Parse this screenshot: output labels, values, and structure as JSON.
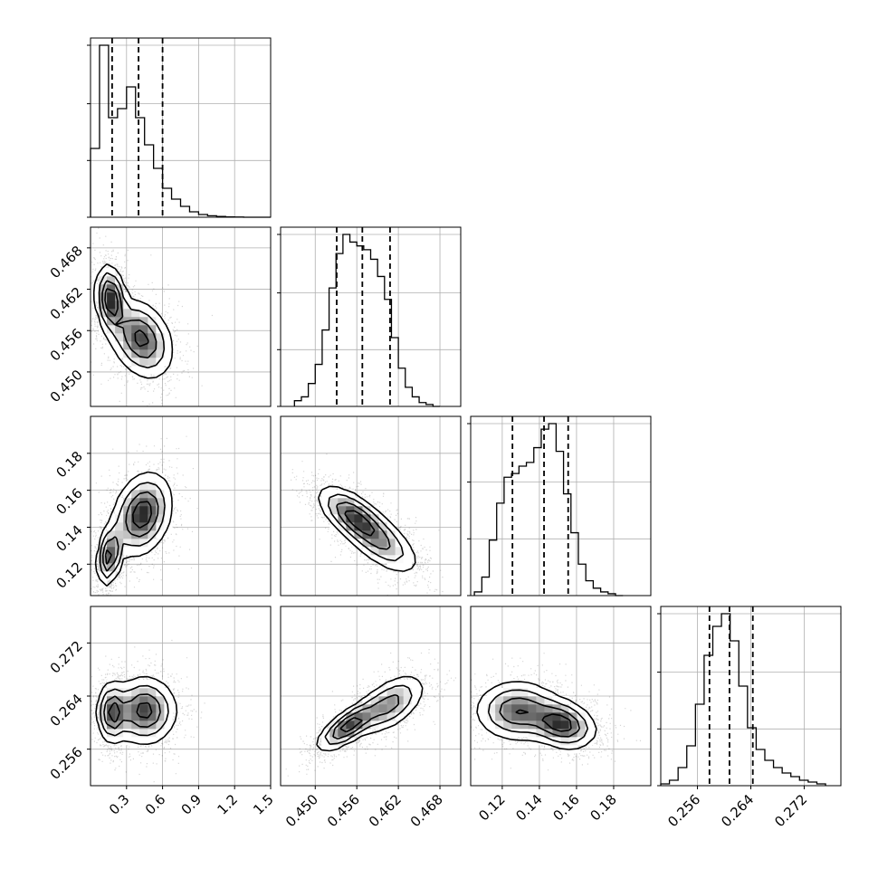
{
  "chart_data": {
    "type": "corner",
    "grid_lines": true,
    "parameters": [
      {
        "range": [
          0.0,
          1.5
        ],
        "ticks": [
          0.3,
          0.6,
          0.9,
          1.2,
          1.5
        ],
        "tick_labels": [
          "0.3",
          "0.6",
          "0.9",
          "1.2",
          "1.5"
        ],
        "quantiles": [
          0.18,
          0.4,
          0.6
        ],
        "hist": {
          "bin_edges": [
            0.0,
            0.075,
            0.15,
            0.225,
            0.3,
            0.375,
            0.45,
            0.525,
            0.6,
            0.675,
            0.75,
            0.825,
            0.9,
            0.975,
            1.05,
            1.125,
            1.2,
            1.275,
            1.35,
            1.425,
            1.5
          ],
          "counts": [
            0.38,
            0.95,
            0.55,
            0.6,
            0.72,
            0.55,
            0.4,
            0.27,
            0.16,
            0.1,
            0.06,
            0.03,
            0.015,
            0.008,
            0.004,
            0.002,
            0.001,
            0,
            0,
            0
          ]
        }
      },
      {
        "range": [
          0.445,
          0.471
        ],
        "ticks": [
          0.45,
          0.456,
          0.462,
          0.468
        ],
        "tick_labels": [
          "0.450",
          "0.456",
          "0.462",
          "0.468"
        ],
        "quantiles": [
          0.4531,
          0.4568,
          0.4608
        ],
        "hist": {
          "bin_edges": [
            0.447,
            0.448,
            0.449,
            0.45,
            0.451,
            0.452,
            0.453,
            0.454,
            0.455,
            0.456,
            0.457,
            0.458,
            0.459,
            0.46,
            0.461,
            0.462,
            0.463,
            0.464,
            0.465,
            0.466,
            0.467,
            0.468
          ],
          "counts": [
            0.03,
            0.05,
            0.12,
            0.22,
            0.4,
            0.62,
            0.8,
            0.9,
            0.86,
            0.84,
            0.82,
            0.77,
            0.68,
            0.56,
            0.36,
            0.2,
            0.1,
            0.05,
            0.02,
            0.01,
            0
          ]
        }
      },
      {
        "range": [
          0.103,
          0.2
        ],
        "ticks": [
          0.12,
          0.14,
          0.16,
          0.18
        ],
        "tick_labels": [
          "0.12",
          "0.14",
          "0.16",
          "0.18"
        ],
        "quantiles": [
          0.1255,
          0.1425,
          0.1555
        ],
        "hist": {
          "bin_edges": [
            0.105,
            0.109,
            0.113,
            0.117,
            0.121,
            0.125,
            0.129,
            0.133,
            0.137,
            0.141,
            0.145,
            0.149,
            0.153,
            0.157,
            0.161,
            0.165,
            0.169,
            0.173,
            0.177,
            0.181,
            0.185
          ],
          "counts": [
            0.02,
            0.1,
            0.3,
            0.5,
            0.64,
            0.66,
            0.7,
            0.72,
            0.8,
            0.9,
            0.93,
            0.78,
            0.55,
            0.34,
            0.17,
            0.08,
            0.04,
            0.02,
            0.01,
            0
          ]
        }
      },
      {
        "range": [
          0.2505,
          0.2775
        ],
        "ticks": [
          0.256,
          0.264,
          0.272
        ],
        "tick_labels": [
          "0.256",
          "0.264",
          "0.272"
        ],
        "quantiles": [
          0.2578,
          0.2608,
          0.2643
        ],
        "hist": {
          "bin_edges": [
            0.2505,
            0.2518,
            0.2531,
            0.2544,
            0.2557,
            0.257,
            0.2583,
            0.2596,
            0.2609,
            0.2622,
            0.2635,
            0.2648,
            0.2661,
            0.2674,
            0.2687,
            0.27,
            0.2713,
            0.2726,
            0.2739,
            0.2752
          ],
          "counts": [
            0.01,
            0.03,
            0.1,
            0.22,
            0.45,
            0.72,
            0.88,
            0.95,
            0.8,
            0.55,
            0.32,
            0.2,
            0.14,
            0.1,
            0.07,
            0.05,
            0.03,
            0.02,
            0.01
          ]
        }
      }
    ],
    "pairs": [
      {
        "i": 1,
        "j": 0,
        "modes": [
          {
            "mx": 0.17,
            "my": 0.4605,
            "sx": 0.06,
            "sy": 0.0024,
            "rho": -0.2,
            "w": 0.55
          },
          {
            "mx": 0.42,
            "my": 0.4548,
            "sx": 0.13,
            "sy": 0.0028,
            "rho": -0.3,
            "w": 0.45
          }
        ]
      },
      {
        "i": 2,
        "j": 0,
        "modes": [
          {
            "mx": 0.16,
            "my": 0.125,
            "sx": 0.05,
            "sy": 0.008,
            "rho": 0.3,
            "w": 0.5
          },
          {
            "mx": 0.43,
            "my": 0.147,
            "sx": 0.12,
            "sy": 0.011,
            "rho": 0.25,
            "w": 0.5
          }
        ]
      },
      {
        "i": 2,
        "j": 1,
        "modes": [
          {
            "mx": 0.4555,
            "my": 0.146,
            "sx": 0.0025,
            "sy": 0.008,
            "rho": -0.65,
            "w": 0.6
          },
          {
            "mx": 0.4595,
            "my": 0.132,
            "sx": 0.0028,
            "sy": 0.009,
            "rho": -0.65,
            "w": 0.4
          }
        ]
      },
      {
        "i": 3,
        "j": 0,
        "modes": [
          {
            "mx": 0.18,
            "my": 0.2615,
            "sx": 0.06,
            "sy": 0.0022,
            "rho": 0.0,
            "w": 0.5
          },
          {
            "mx": 0.45,
            "my": 0.2618,
            "sx": 0.13,
            "sy": 0.0025,
            "rho": 0.0,
            "w": 0.5
          }
        ]
      },
      {
        "i": 3,
        "j": 1,
        "modes": [
          {
            "mx": 0.4548,
            "my": 0.2595,
            "sx": 0.0022,
            "sy": 0.0018,
            "rho": 0.75,
            "w": 0.6
          },
          {
            "mx": 0.4608,
            "my": 0.2628,
            "sx": 0.0025,
            "sy": 0.0022,
            "rho": 0.55,
            "w": 0.4
          }
        ]
      },
      {
        "i": 3,
        "j": 2,
        "modes": [
          {
            "mx": 0.128,
            "my": 0.2618,
            "sx": 0.011,
            "sy": 0.0022,
            "rho": 0.0,
            "w": 0.45
          },
          {
            "mx": 0.152,
            "my": 0.2598,
            "sx": 0.009,
            "sy": 0.0018,
            "rho": -0.25,
            "w": 0.55
          }
        ]
      }
    ],
    "contour_levels": [
      0.12,
      0.3,
      0.55,
      0.8
    ]
  }
}
